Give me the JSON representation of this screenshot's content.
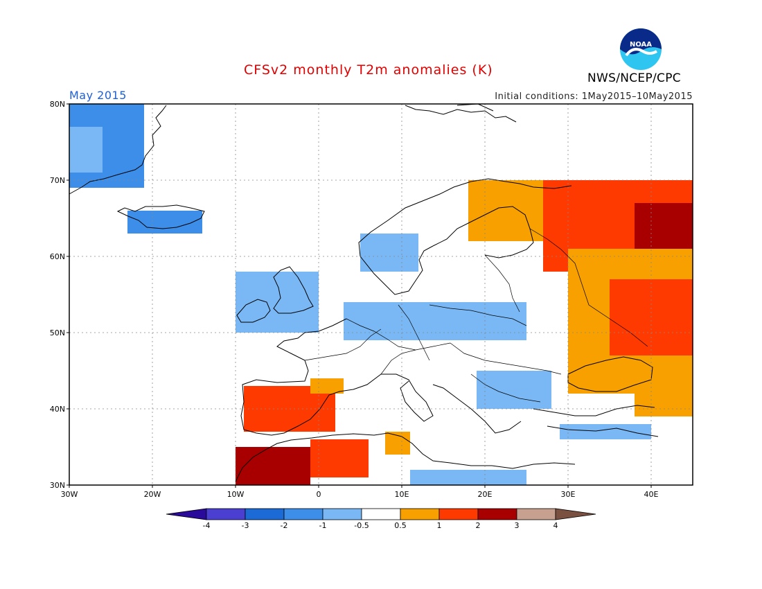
{
  "header": {
    "title": "CFSv2 monthly T2m anomalies (K)",
    "month": "May 2015",
    "initial_conditions": "Initial conditions: 1May2015–10May2015",
    "agency": "NWS/NCEP/CPC",
    "logo_text": "NOAA"
  },
  "colors": {
    "title": "#e00000",
    "month": "#1f5fd6",
    "land": "#ffffff",
    "grid": "#888888"
  },
  "axes": {
    "lon_ticks": [
      "30W",
      "20W",
      "10W",
      "0",
      "10E",
      "20E",
      "30E",
      "40E"
    ],
    "lat_ticks": [
      "80N",
      "70N",
      "60N",
      "50N",
      "40N",
      "30N"
    ],
    "lon_range": [
      -30,
      45
    ],
    "lat_range": [
      30,
      80
    ]
  },
  "colorbar": {
    "labels": [
      "-4",
      "-3",
      "-2",
      "-1",
      "-0.5",
      "0.5",
      "1",
      "2",
      "3",
      "4"
    ],
    "colors": [
      "#2a0a9a",
      "#4a3fd1",
      "#1c6ad6",
      "#3c8ee8",
      "#7ab8f5",
      "#ffffff",
      "#f7a000",
      "#ff3a00",
      "#a80000",
      "#c8a090",
      "#7a5040"
    ]
  },
  "anomaly_regions": [
    {
      "name": "greenland",
      "level": -1,
      "color": "#3c8ee8",
      "lon": [
        -30,
        -21
      ],
      "lat": [
        69,
        80
      ]
    },
    {
      "name": "greenland-light",
      "level": -0.5,
      "color": "#7ab8f5",
      "lon": [
        -30,
        -26
      ],
      "lat": [
        71,
        77
      ]
    },
    {
      "name": "iceland",
      "level": -1,
      "color": "#3c8ee8",
      "lon": [
        -23,
        -14
      ],
      "lat": [
        63,
        66
      ]
    },
    {
      "name": "iberia",
      "level": 1,
      "color": "#ff3a00",
      "lon": [
        -9,
        2
      ],
      "lat": [
        37,
        43
      ]
    },
    {
      "name": "iberia-north-edge",
      "level": 0.5,
      "color": "#f7a000",
      "lon": [
        -1,
        3
      ],
      "lat": [
        42,
        44
      ]
    },
    {
      "name": "north-africa-west",
      "level": 2,
      "color": "#a80000",
      "lon": [
        -10,
        -1
      ],
      "lat": [
        30,
        35
      ]
    },
    {
      "name": "north-africa-orange",
      "level": 1,
      "color": "#ff3a00",
      "lon": [
        -1,
        6
      ],
      "lat": [
        31,
        36
      ]
    },
    {
      "name": "tunisia",
      "level": 0.5,
      "color": "#f7a000",
      "lon": [
        8,
        11
      ],
      "lat": [
        34,
        37
      ]
    },
    {
      "name": "scandinavia-north",
      "level": 0.5,
      "color": "#f7a000",
      "lon": [
        18,
        30
      ],
      "lat": [
        62,
        70
      ]
    },
    {
      "name": "kola",
      "level": 1,
      "color": "#ff3a00",
      "lon": [
        27,
        45
      ],
      "lat": [
        58,
        70
      ]
    },
    {
      "name": "northern-russia",
      "level": 2,
      "color": "#a80000",
      "lon": [
        38,
        45
      ],
      "lat": [
        60,
        67
      ]
    },
    {
      "name": "western-russia",
      "level": 0.5,
      "color": "#f7a000",
      "lon": [
        30,
        45
      ],
      "lat": [
        42,
        61
      ]
    },
    {
      "name": "southern-russia",
      "level": 1,
      "color": "#ff3a00",
      "lon": [
        35,
        45
      ],
      "lat": [
        47,
        57
      ]
    },
    {
      "name": "turkey-east",
      "level": 0.5,
      "color": "#f7a000",
      "lon": [
        38,
        45
      ],
      "lat": [
        39,
        42
      ]
    },
    {
      "name": "uk-ireland",
      "level": -0.5,
      "color": "#7ab8f5",
      "lon": [
        -10,
        0
      ],
      "lat": [
        50,
        58
      ]
    },
    {
      "name": "norway",
      "level": -0.5,
      "color": "#7ab8f5",
      "lon": [
        5,
        12
      ],
      "lat": [
        58,
        63
      ]
    },
    {
      "name": "central-europe",
      "level": -0.5,
      "color": "#7ab8f5",
      "lon": [
        3,
        25
      ],
      "lat": [
        49,
        54
      ]
    },
    {
      "name": "balkans",
      "level": -0.5,
      "color": "#7ab8f5",
      "lon": [
        19,
        28
      ],
      "lat": [
        40,
        45
      ]
    },
    {
      "name": "mediterranean-east",
      "level": -0.5,
      "color": "#7ab8f5",
      "lon": [
        29,
        40
      ],
      "lat": [
        36,
        38
      ]
    },
    {
      "name": "libya",
      "level": -0.5,
      "color": "#7ab8f5",
      "lon": [
        11,
        25
      ],
      "lat": [
        30,
        32
      ]
    }
  ]
}
